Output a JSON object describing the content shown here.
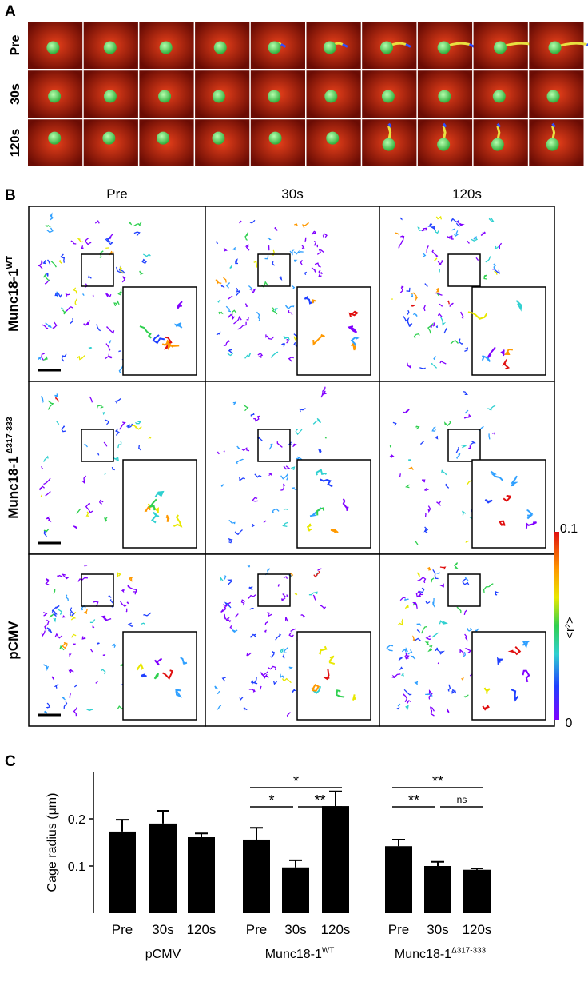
{
  "panel_a": {
    "label": "A",
    "rows": [
      "Pre",
      "30s",
      "120s"
    ]
  },
  "panel_b": {
    "label": "B",
    "columns": [
      "Pre",
      "30s",
      "120s"
    ],
    "rows": [
      {
        "text": "Munc18-1",
        "sup": "WT"
      },
      {
        "text": "Munc18-1",
        "sup": " Δ317-333"
      },
      {
        "text": "pCMV"
      }
    ],
    "colorbar": {
      "max": "0.1",
      "min": "0",
      "label": "<r²>"
    }
  },
  "chart_data": {
    "type": "bar",
    "label": "C",
    "ylabel": "Cage radius (μm)",
    "categories": [
      "Pre",
      "30s",
      "120s",
      "Pre",
      "30s",
      "120s",
      "Pre",
      "30s",
      "120s"
    ],
    "groups": [
      {
        "text": "pCMV"
      },
      {
        "text": "Munc18-1",
        "sup": "WT"
      },
      {
        "text": "Munc18-1",
        "sup": "Δ317-333"
      }
    ],
    "values": [
      0.173,
      0.19,
      0.161,
      0.156,
      0.097,
      0.227,
      0.142,
      0.1,
      0.092
    ],
    "errors": [
      0.025,
      0.027,
      0.008,
      0.025,
      0.015,
      0.031,
      0.014,
      0.009,
      0.003
    ],
    "color": "#000000",
    "ylim": [
      0,
      0.3
    ],
    "yticks": [
      0.1,
      0.2
    ],
    "annotations": [
      "*",
      "*",
      "**",
      "**",
      "**",
      "ns"
    ]
  }
}
